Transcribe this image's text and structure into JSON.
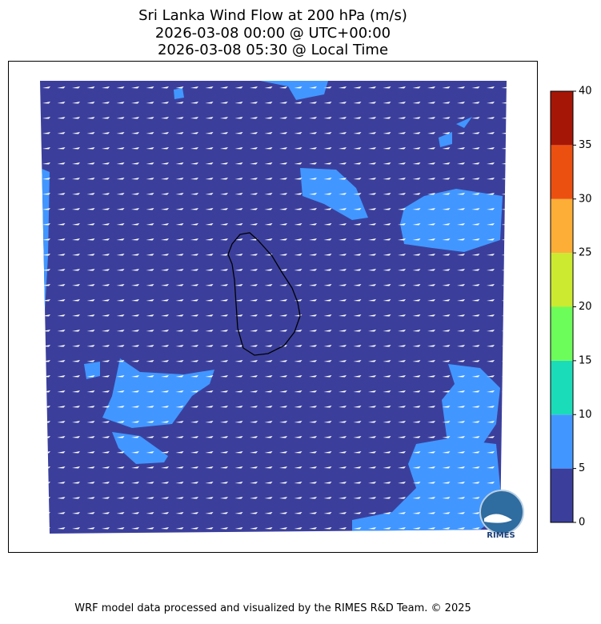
{
  "title": [
    "Sri Lanka Wind Flow at 200 hPa (m/s)",
    "2026-03-08 00:00 @ UTC+00:00",
    "2026-03-08 05:30 @ Local Time"
  ],
  "colorbar": {
    "ticks": [
      0,
      5,
      10,
      15,
      20,
      25,
      30,
      35,
      40
    ],
    "colors": [
      "#3b3f9b",
      "#4197ff",
      "#1bdcb8",
      "#6cfd5a",
      "#cbea30",
      "#fdae36",
      "#ec5011",
      "#a61606"
    ]
  },
  "logo": "RIMES",
  "footer": "WRF model data processed and visualized by the RIMES R&D Team. © 2025"
}
